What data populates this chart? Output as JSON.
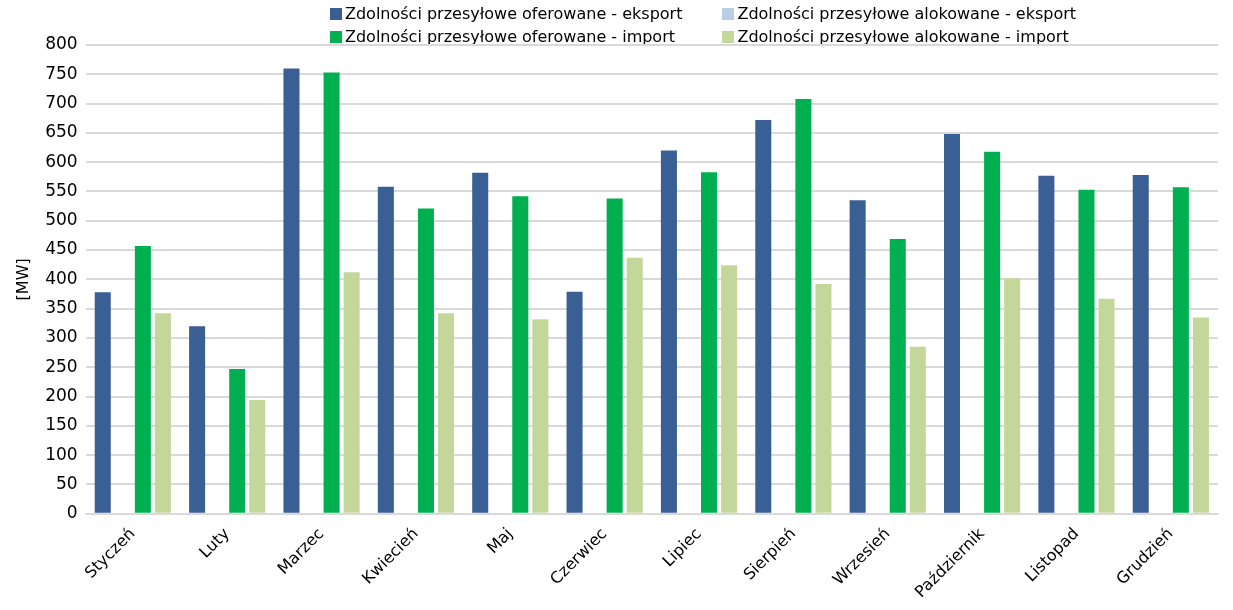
{
  "chart_data": {
    "type": "bar",
    "ylabel": "[MW]",
    "categories": [
      "Styczeń",
      "Luty",
      "Marzec",
      "Kwiecień",
      "Maj",
      "Czerwiec",
      "Lipiec",
      "Sierpień",
      "Wrzesień",
      "Październik",
      "Listopad",
      "Grudzień"
    ],
    "series": [
      {
        "name": "Zdolności przesyłowe oferowane - eksport",
        "color": "#3a5f94",
        "values": [
          378,
          320,
          760,
          558,
          582,
          379,
          620,
          672,
          535,
          648,
          577,
          578
        ]
      },
      {
        "name": "Zdolności przesyłowe alokowane - eksport",
        "color": "#b9cde5",
        "values": [
          0,
          0,
          0,
          0,
          0,
          0,
          0,
          null,
          0,
          0,
          null,
          0
        ]
      },
      {
        "name": "Zdolności przesyłowe oferowane - import",
        "color": "#00b050",
        "values": [
          457,
          247,
          753,
          521,
          542,
          538,
          583,
          708,
          469,
          618,
          553,
          557
        ]
      },
      {
        "name": "Zdolności przesyłowe alokowane - import",
        "color": "#c4d79b",
        "values": [
          342,
          194,
          412,
          342,
          332,
          437,
          424,
          392,
          285,
          402,
          367,
          335
        ]
      }
    ],
    "ylim": [
      0,
      800
    ],
    "yticks": [
      0,
      50,
      100,
      150,
      200,
      250,
      300,
      350,
      400,
      450,
      500,
      550,
      600,
      650,
      700,
      750,
      800
    ],
    "grid": "y",
    "legend": "top"
  }
}
